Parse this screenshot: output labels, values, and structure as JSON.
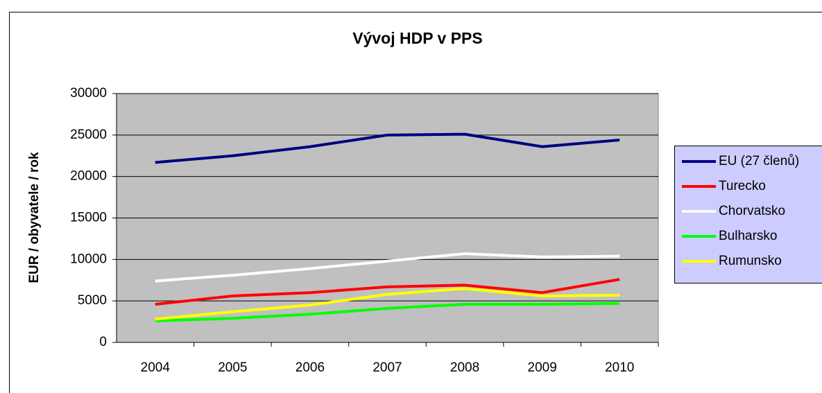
{
  "chart_data": {
    "type": "line",
    "title": "Vývoj HDP v PPS",
    "y_label": "EUR / obyvatele / rok",
    "categories": [
      "2004",
      "2005",
      "2006",
      "2007",
      "2008",
      "2009",
      "2010"
    ],
    "series": [
      {
        "name": "EU (27 členů)",
        "color": "#000080",
        "values": [
          21700,
          22500,
          23600,
          25000,
          25100,
          23600,
          24400
        ]
      },
      {
        "name": "Turecko",
        "color": "#ff0000",
        "values": [
          4600,
          5600,
          6000,
          6700,
          6900,
          6000,
          7600
        ]
      },
      {
        "name": "Chorvatsko",
        "color": "#ffffff",
        "values": [
          7400,
          8100,
          8900,
          9800,
          10700,
          10300,
          10400
        ]
      },
      {
        "name": "Bulharsko",
        "color": "#00ff00",
        "values": [
          2600,
          2900,
          3400,
          4100,
          4600,
          4600,
          4700
        ]
      },
      {
        "name": "Rumunsko",
        "color": "#ffff00",
        "values": [
          2800,
          3700,
          4500,
          5800,
          6500,
          5600,
          5700
        ]
      }
    ],
    "ylim": [
      0,
      30000
    ],
    "yticks": [
      0,
      5000,
      10000,
      15000,
      20000,
      25000,
      30000
    ],
    "grid": true,
    "legend": "right"
  }
}
